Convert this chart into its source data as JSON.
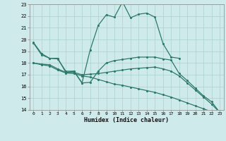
{
  "xlabel": "Humidex (Indice chaleur)",
  "background_color": "#ceeaea",
  "grid_color": "#aacfcf",
  "line_color": "#2d7a6a",
  "xlim": [
    -0.5,
    23.5
  ],
  "ylim": [
    14,
    23
  ],
  "yticks": [
    14,
    15,
    16,
    17,
    18,
    19,
    20,
    21,
    22,
    23
  ],
  "xticks": [
    0,
    1,
    2,
    3,
    4,
    5,
    6,
    7,
    8,
    9,
    10,
    11,
    12,
    13,
    14,
    15,
    16,
    17,
    18,
    19,
    20,
    21,
    22,
    23
  ],
  "line1_x": [
    0,
    1,
    2,
    3,
    4,
    5,
    6,
    7,
    8,
    9,
    10,
    11,
    12,
    13,
    14,
    15,
    16,
    17,
    18
  ],
  "line1_y": [
    19.7,
    18.7,
    18.4,
    18.4,
    17.2,
    17.3,
    16.3,
    19.1,
    21.2,
    22.1,
    21.9,
    23.2,
    21.85,
    22.15,
    22.25,
    21.9,
    19.65,
    18.5,
    18.4
  ],
  "line2_x": [
    0,
    1,
    2,
    3,
    4,
    5,
    6,
    7,
    8,
    9,
    10,
    11,
    12,
    13,
    14,
    15,
    16,
    17,
    18,
    19,
    20,
    21,
    22,
    23
  ],
  "line2_y": [
    19.75,
    18.8,
    18.4,
    18.35,
    17.3,
    17.3,
    16.3,
    16.35,
    17.3,
    18.0,
    18.2,
    18.3,
    18.4,
    18.5,
    18.5,
    18.5,
    18.35,
    18.25,
    17.1,
    16.5,
    15.85,
    15.2,
    14.7,
    13.8
  ],
  "line3_x": [
    0,
    1,
    2,
    3,
    4,
    5,
    6,
    7,
    8,
    9,
    10,
    11,
    12,
    13,
    14,
    15,
    16,
    17,
    18,
    19,
    20,
    21,
    22,
    23
  ],
  "line3_y": [
    18.0,
    17.9,
    17.85,
    17.5,
    17.2,
    17.2,
    17.0,
    17.05,
    17.1,
    17.2,
    17.3,
    17.4,
    17.5,
    17.55,
    17.6,
    17.65,
    17.5,
    17.3,
    16.9,
    16.3,
    15.7,
    15.1,
    14.5,
    13.8
  ],
  "line4_x": [
    0,
    1,
    2,
    3,
    4,
    5,
    6,
    7,
    8,
    9,
    10,
    11,
    12,
    13,
    14,
    15,
    16,
    17,
    18,
    19,
    20,
    21,
    22,
    23
  ],
  "line4_y": [
    18.0,
    17.85,
    17.75,
    17.4,
    17.15,
    17.1,
    16.9,
    16.8,
    16.6,
    16.4,
    16.2,
    16.1,
    15.95,
    15.8,
    15.65,
    15.5,
    15.3,
    15.1,
    14.85,
    14.6,
    14.35,
    14.1,
    13.85,
    13.75
  ]
}
